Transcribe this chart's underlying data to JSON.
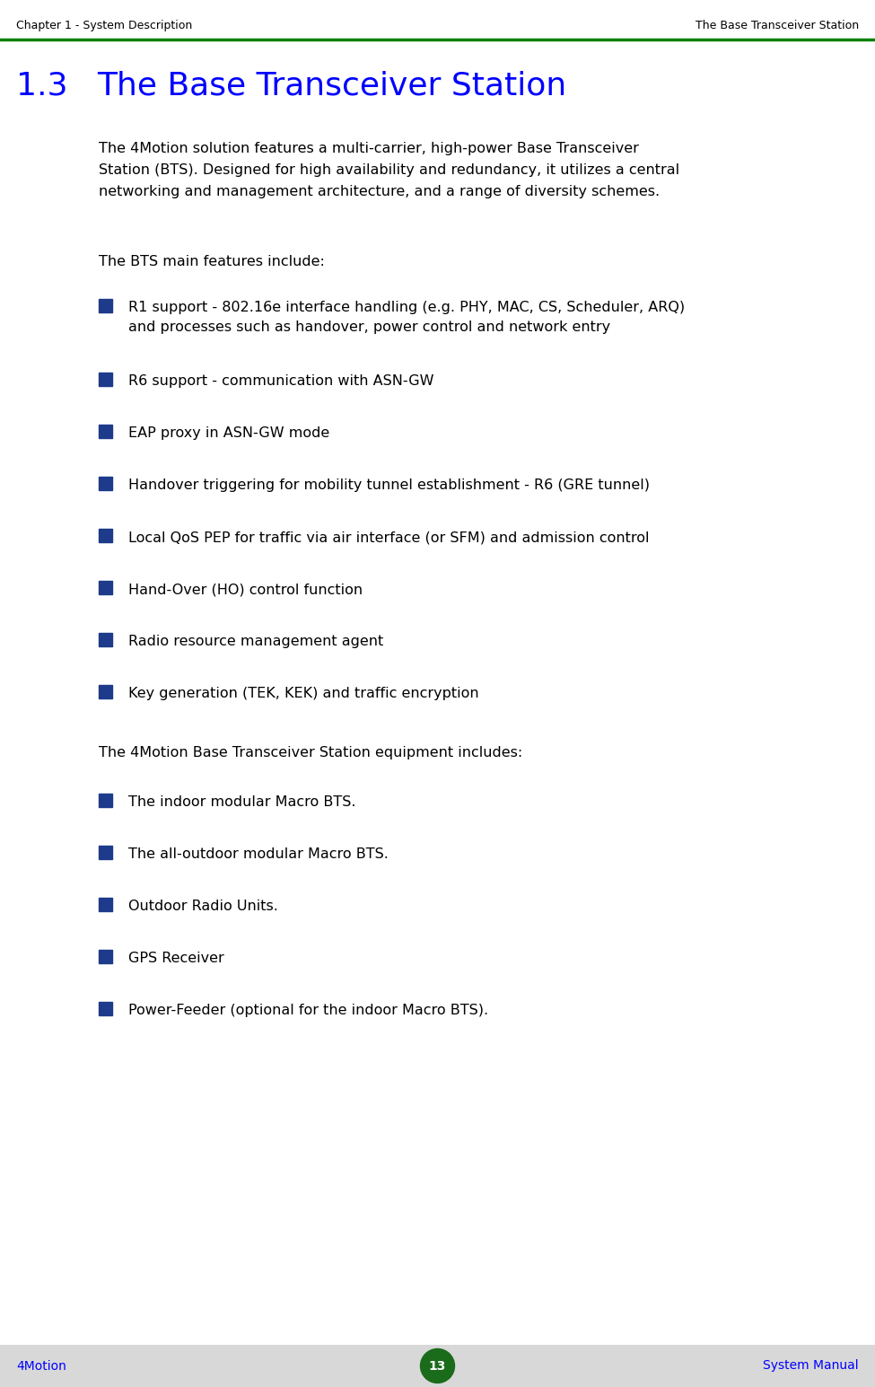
{
  "header_left": "Chapter 1 - System Description",
  "header_right": "The Base Transceiver Station",
  "header_line_color": "#008000",
  "header_text_color": "#000000",
  "section_number": "1.3",
  "section_title": "The Base Transceiver Station",
  "section_title_color": "#0000FF",
  "body_text_color": "#000000",
  "intro_lines": [
    "The 4Motion solution features a multi-carrier, high-power Base Transceiver",
    "Station (BTS). Designed for high availability and redundancy, it utilizes a central",
    "networking and management architecture, and a range of diversity schemes."
  ],
  "features_intro": "The BTS main features include:",
  "bullet_color": "#1E3A8A",
  "bullet_items": [
    [
      "R1 support - 802.16e interface handling (e.g. PHY, MAC, CS, Scheduler, ARQ)",
      "and processes such as handover, power control and network entry"
    ],
    [
      "R6 support - communication with ASN-GW"
    ],
    [
      "EAP proxy in ASN-GW mode"
    ],
    [
      "Handover triggering for mobility tunnel establishment - R6 (GRE tunnel)"
    ],
    [
      "Local QoS PEP for traffic via air interface (or SFM) and admission control"
    ],
    [
      "Hand-Over (HO) control function"
    ],
    [
      "Radio resource management agent"
    ],
    [
      "Key generation (TEK, KEK) and traffic encryption"
    ]
  ],
  "equipment_intro": "The 4Motion Base Transceiver Station equipment includes:",
  "equipment_items": [
    [
      "The indoor modular Macro BTS."
    ],
    [
      "The all-outdoor modular Macro BTS."
    ],
    [
      "Outdoor Radio Units."
    ],
    [
      "GPS Receiver"
    ],
    [
      "Power-Feeder (optional for the indoor Macro BTS)."
    ]
  ],
  "footer_left": "4Motion",
  "footer_right": "System Manual",
  "footer_text_color": "#0000FF",
  "footer_bg_color": "#D8D8D8",
  "page_number": "13",
  "page_circle_color": "#1A6B1A",
  "background_color": "#FFFFFF"
}
